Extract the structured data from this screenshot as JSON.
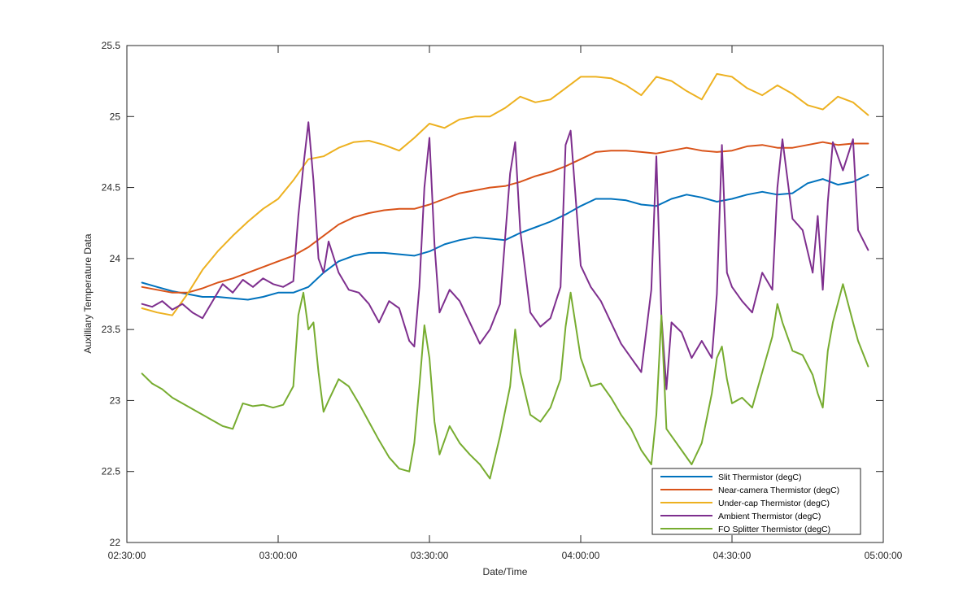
{
  "chart_data": {
    "type": "line",
    "title": "",
    "xlabel": "Date/Time",
    "ylabel": "Auxilliary Temperature Data",
    "xlim": [
      "02:30:00",
      "05:00:00"
    ],
    "ylim": [
      22,
      25.5
    ],
    "x_ticks": [
      "02:30:00",
      "03:00:00",
      "03:30:00",
      "04:00:00",
      "04:30:00",
      "05:00:00"
    ],
    "y_ticks": [
      "22",
      "22.5",
      "23",
      "23.5",
      "24",
      "24.5",
      "25",
      "25.5"
    ],
    "grid": false,
    "legend_position": "bottom-right",
    "series": [
      {
        "name": "Slit Thermistor (degC)",
        "color": "#0072BD",
        "x": [
          "02:33:00",
          "02:36:00",
          "02:39:00",
          "02:42:00",
          "02:45:00",
          "02:48:00",
          "02:51:00",
          "02:54:00",
          "02:57:00",
          "03:00:00",
          "03:03:00",
          "03:06:00",
          "03:09:00",
          "03:12:00",
          "03:15:00",
          "03:18:00",
          "03:21:00",
          "03:24:00",
          "03:27:00",
          "03:30:00",
          "03:33:00",
          "03:36:00",
          "03:39:00",
          "03:42:00",
          "03:45:00",
          "03:48:00",
          "03:51:00",
          "03:54:00",
          "03:57:00",
          "04:00:00",
          "04:03:00",
          "04:06:00",
          "04:09:00",
          "04:12:00",
          "04:15:00",
          "04:18:00",
          "04:21:00",
          "04:24:00",
          "04:27:00",
          "04:30:00",
          "04:33:00",
          "04:36:00",
          "04:39:00",
          "04:42:00",
          "04:45:00",
          "04:48:00",
          "04:51:00",
          "04:54:00",
          "04:57:00"
        ],
        "values": [
          23.83,
          23.8,
          23.77,
          23.75,
          23.73,
          23.73,
          23.72,
          23.71,
          23.73,
          23.76,
          23.76,
          23.8,
          23.9,
          23.98,
          24.02,
          24.04,
          24.04,
          24.03,
          24.02,
          24.05,
          24.1,
          24.13,
          24.15,
          24.14,
          24.13,
          24.18,
          24.22,
          24.26,
          24.31,
          24.37,
          24.42,
          24.42,
          24.41,
          24.38,
          24.37,
          24.42,
          24.45,
          24.43,
          24.4,
          24.42,
          24.45,
          24.47,
          24.45,
          24.46,
          24.53,
          24.56,
          24.52,
          24.54,
          24.59
        ]
      },
      {
        "name": "Near-camera Thermistor (degC)",
        "color": "#D95319",
        "x": [
          "02:33:00",
          "02:36:00",
          "02:39:00",
          "02:42:00",
          "02:45:00",
          "02:48:00",
          "02:51:00",
          "02:54:00",
          "02:57:00",
          "03:00:00",
          "03:03:00",
          "03:06:00",
          "03:09:00",
          "03:12:00",
          "03:15:00",
          "03:18:00",
          "03:21:00",
          "03:24:00",
          "03:27:00",
          "03:30:00",
          "03:33:00",
          "03:36:00",
          "03:39:00",
          "03:42:00",
          "03:45:00",
          "03:48:00",
          "03:51:00",
          "03:54:00",
          "03:57:00",
          "04:00:00",
          "04:03:00",
          "04:06:00",
          "04:09:00",
          "04:12:00",
          "04:15:00",
          "04:18:00",
          "04:21:00",
          "04:24:00",
          "04:27:00",
          "04:30:00",
          "04:33:00",
          "04:36:00",
          "04:39:00",
          "04:42:00",
          "04:45:00",
          "04:48:00",
          "04:51:00",
          "04:54:00",
          "04:57:00"
        ],
        "values": [
          23.8,
          23.78,
          23.76,
          23.76,
          23.79,
          23.83,
          23.86,
          23.9,
          23.94,
          23.98,
          24.02,
          24.08,
          24.16,
          24.24,
          24.29,
          24.32,
          24.34,
          24.35,
          24.35,
          24.38,
          24.42,
          24.46,
          24.48,
          24.5,
          24.51,
          24.54,
          24.58,
          24.61,
          24.65,
          24.7,
          24.75,
          24.76,
          24.76,
          24.75,
          24.74,
          24.76,
          24.78,
          24.76,
          24.75,
          24.76,
          24.79,
          24.8,
          24.78,
          24.78,
          24.8,
          24.82,
          24.8,
          24.81,
          24.81
        ]
      },
      {
        "name": "Under-cap Thermistor (degC)",
        "color": "#EDB120",
        "x": [
          "02:33:00",
          "02:36:00",
          "02:39:00",
          "02:42:00",
          "02:45:00",
          "02:48:00",
          "02:51:00",
          "02:54:00",
          "02:57:00",
          "03:00:00",
          "03:03:00",
          "03:06:00",
          "03:09:00",
          "03:12:00",
          "03:15:00",
          "03:18:00",
          "03:21:00",
          "03:24:00",
          "03:27:00",
          "03:30:00",
          "03:33:00",
          "03:36:00",
          "03:39:00",
          "03:42:00",
          "03:45:00",
          "03:48:00",
          "03:51:00",
          "03:54:00",
          "03:57:00",
          "04:00:00",
          "04:03:00",
          "04:06:00",
          "04:09:00",
          "04:12:00",
          "04:15:00",
          "04:18:00",
          "04:21:00",
          "04:24:00",
          "04:27:00",
          "04:30:00",
          "04:33:00",
          "04:36:00",
          "04:39:00",
          "04:42:00",
          "04:45:00",
          "04:48:00",
          "04:51:00",
          "04:54:00",
          "04:57:00"
        ],
        "values": [
          23.65,
          23.62,
          23.6,
          23.75,
          23.92,
          24.05,
          24.16,
          24.26,
          24.35,
          24.42,
          24.55,
          24.7,
          24.72,
          24.78,
          24.82,
          24.83,
          24.8,
          24.76,
          24.85,
          24.95,
          24.92,
          24.98,
          25.0,
          25.0,
          25.06,
          25.14,
          25.1,
          25.12,
          25.2,
          25.28,
          25.28,
          25.27,
          25.22,
          25.15,
          25.28,
          25.25,
          25.18,
          25.12,
          25.3,
          25.28,
          25.2,
          25.15,
          25.22,
          25.16,
          25.08,
          25.05,
          25.14,
          25.1,
          25.01
        ]
      },
      {
        "name": "Ambient Thermistor (degC)",
        "color": "#7E2F8E",
        "x": [
          "02:33:00",
          "02:35:00",
          "02:37:00",
          "02:39:00",
          "02:41:00",
          "02:43:00",
          "02:45:00",
          "02:47:00",
          "02:49:00",
          "02:51:00",
          "02:53:00",
          "02:55:00",
          "02:57:00",
          "02:59:00",
          "03:01:00",
          "03:03:00",
          "03:04:00",
          "03:05:00",
          "03:06:00",
          "03:07:00",
          "03:08:00",
          "03:09:00",
          "03:10:00",
          "03:12:00",
          "03:14:00",
          "03:16:00",
          "03:18:00",
          "03:20:00",
          "03:22:00",
          "03:24:00",
          "03:26:00",
          "03:27:00",
          "03:28:00",
          "03:29:00",
          "03:30:00",
          "03:31:00",
          "03:32:00",
          "03:34:00",
          "03:36:00",
          "03:38:00",
          "03:40:00",
          "03:42:00",
          "03:44:00",
          "03:46:00",
          "03:47:00",
          "03:48:00",
          "03:50:00",
          "03:52:00",
          "03:54:00",
          "03:56:00",
          "03:57:00",
          "03:58:00",
          "04:00:00",
          "04:02:00",
          "04:04:00",
          "04:06:00",
          "04:08:00",
          "04:10:00",
          "04:12:00",
          "04:14:00",
          "04:15:00",
          "04:16:00",
          "04:17:00",
          "04:18:00",
          "04:20:00",
          "04:22:00",
          "04:24:00",
          "04:26:00",
          "04:27:00",
          "04:28:00",
          "04:29:00",
          "04:30:00",
          "04:32:00",
          "04:34:00",
          "04:36:00",
          "04:38:00",
          "04:39:00",
          "04:40:00",
          "04:42:00",
          "04:44:00",
          "04:46:00",
          "04:47:00",
          "04:48:00",
          "04:49:00",
          "04:50:00",
          "04:52:00",
          "04:54:00",
          "04:55:00",
          "04:57:00"
        ],
        "values": [
          23.68,
          23.66,
          23.7,
          23.64,
          23.68,
          23.62,
          23.58,
          23.7,
          23.82,
          23.76,
          23.85,
          23.8,
          23.86,
          23.82,
          23.8,
          23.84,
          24.3,
          24.65,
          24.96,
          24.55,
          24.0,
          23.9,
          24.12,
          23.9,
          23.78,
          23.76,
          23.68,
          23.55,
          23.7,
          23.65,
          23.42,
          23.38,
          23.8,
          24.5,
          24.85,
          24.1,
          23.62,
          23.78,
          23.7,
          23.55,
          23.4,
          23.5,
          23.68,
          24.6,
          24.82,
          24.2,
          23.62,
          23.52,
          23.58,
          23.8,
          24.8,
          24.9,
          23.95,
          23.8,
          23.7,
          23.55,
          23.4,
          23.3,
          23.2,
          23.78,
          24.72,
          23.6,
          23.08,
          23.55,
          23.48,
          23.3,
          23.42,
          23.3,
          23.75,
          24.8,
          23.9,
          23.8,
          23.7,
          23.62,
          23.9,
          23.78,
          24.5,
          24.84,
          24.28,
          24.2,
          23.9,
          24.3,
          23.78,
          24.4,
          24.82,
          24.62,
          24.84,
          24.2,
          24.06
        ]
      },
      {
        "name": "FO Splitter Thermistor (degC)",
        "color": "#77AC30",
        "x": [
          "02:33:00",
          "02:35:00",
          "02:37:00",
          "02:39:00",
          "02:41:00",
          "02:43:00",
          "02:45:00",
          "02:47:00",
          "02:49:00",
          "02:51:00",
          "02:53:00",
          "02:55:00",
          "02:57:00",
          "02:59:00",
          "03:01:00",
          "03:03:00",
          "03:04:00",
          "03:05:00",
          "03:06:00",
          "03:07:00",
          "03:08:00",
          "03:09:00",
          "03:10:00",
          "03:12:00",
          "03:14:00",
          "03:16:00",
          "03:18:00",
          "03:20:00",
          "03:22:00",
          "03:24:00",
          "03:26:00",
          "03:27:00",
          "03:28:00",
          "03:29:00",
          "03:30:00",
          "03:31:00",
          "03:32:00",
          "03:34:00",
          "03:36:00",
          "03:38:00",
          "03:40:00",
          "03:42:00",
          "03:44:00",
          "03:46:00",
          "03:47:00",
          "03:48:00",
          "03:50:00",
          "03:52:00",
          "03:54:00",
          "03:56:00",
          "03:57:00",
          "03:58:00",
          "04:00:00",
          "04:02:00",
          "04:04:00",
          "04:06:00",
          "04:08:00",
          "04:10:00",
          "04:12:00",
          "04:14:00",
          "04:15:00",
          "04:16:00",
          "04:17:00",
          "04:18:00",
          "04:20:00",
          "04:22:00",
          "04:24:00",
          "04:26:00",
          "04:27:00",
          "04:28:00",
          "04:29:00",
          "04:30:00",
          "04:32:00",
          "04:34:00",
          "04:36:00",
          "04:38:00",
          "04:39:00",
          "04:40:00",
          "04:42:00",
          "04:44:00",
          "04:46:00",
          "04:47:00",
          "04:48:00",
          "04:49:00",
          "04:50:00",
          "04:52:00",
          "04:54:00",
          "04:55:00",
          "04:57:00"
        ],
        "values": [
          23.19,
          23.12,
          23.08,
          23.02,
          22.98,
          22.94,
          22.9,
          22.86,
          22.82,
          22.8,
          22.98,
          22.96,
          22.97,
          22.95,
          22.97,
          23.1,
          23.6,
          23.76,
          23.5,
          23.55,
          23.2,
          22.92,
          23.0,
          23.15,
          23.1,
          22.98,
          22.85,
          22.72,
          22.6,
          22.52,
          22.5,
          22.7,
          23.1,
          23.53,
          23.3,
          22.85,
          22.62,
          22.82,
          22.7,
          22.62,
          22.55,
          22.45,
          22.75,
          23.1,
          23.5,
          23.2,
          22.9,
          22.85,
          22.95,
          23.15,
          23.52,
          23.76,
          23.3,
          23.1,
          23.12,
          23.02,
          22.9,
          22.8,
          22.65,
          22.55,
          22.9,
          23.6,
          22.8,
          22.75,
          22.65,
          22.55,
          22.7,
          23.05,
          23.3,
          23.38,
          23.15,
          22.98,
          23.02,
          22.95,
          23.2,
          23.45,
          23.68,
          23.55,
          23.35,
          23.32,
          23.18,
          23.05,
          22.95,
          23.35,
          23.55,
          23.82,
          23.55,
          23.42,
          23.24
        ]
      }
    ]
  }
}
